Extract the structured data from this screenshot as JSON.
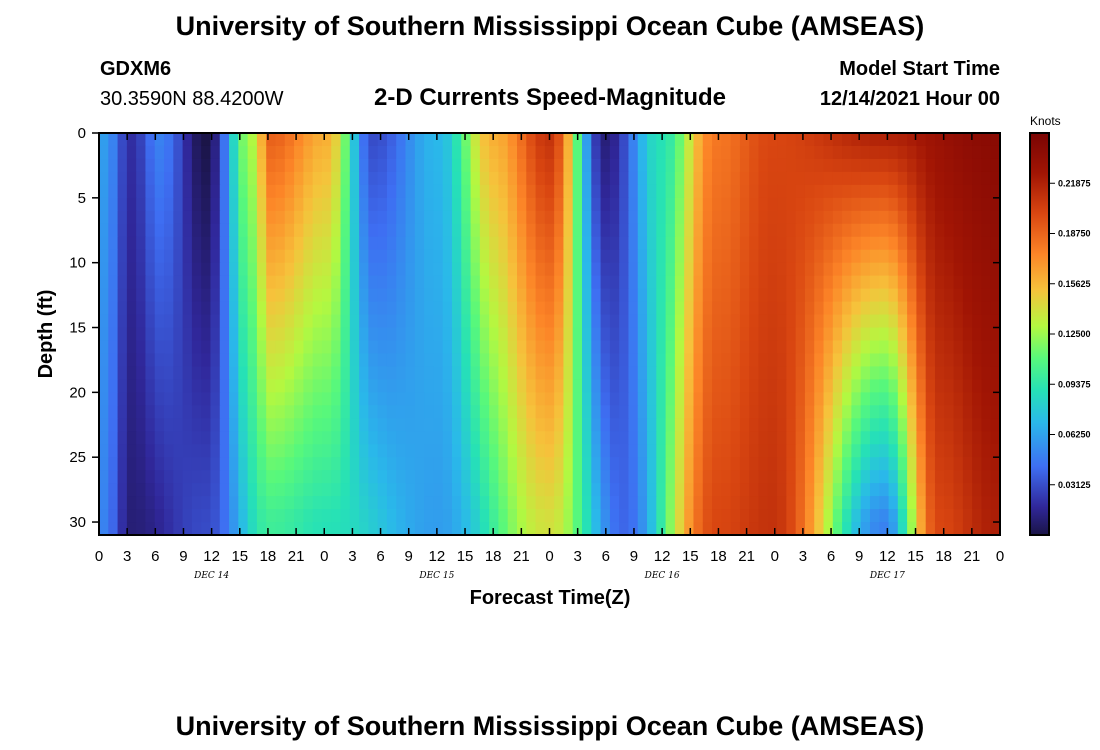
{
  "header": {
    "title": "University of Southern Mississippi Ocean Cube (AMSEAS)",
    "station_id": "GDXM6",
    "station_coords": "30.3590N  88.4200W",
    "chart_title": "2-D Currents Speed-Magnitude",
    "model_start_label": "Model Start Time",
    "model_start_value": "12/14/2021 Hour 00"
  },
  "footer": {
    "title": "University of Southern Mississippi Ocean Cube (AMSEAS)"
  },
  "colors": {
    "background": "#ffffff",
    "text": "#000000",
    "palette": [
      "#1a1446",
      "#30279a",
      "#3e6ef2",
      "#2ab8ea",
      "#26e1b6",
      "#58f87b",
      "#b4f840",
      "#f6c23b",
      "#fc8427",
      "#d94611",
      "#a11504",
      "#7a0403"
    ]
  },
  "chart_data": {
    "type": "heatmap",
    "title": "2-D Currents Speed-Magnitude",
    "xlabel": "Forecast Time(Z)",
    "ylabel": "Depth (ft)",
    "x_tick_labels": [
      "0",
      "3",
      "6",
      "9",
      "12",
      "15",
      "18",
      "21",
      "0",
      "3",
      "6",
      "9",
      "12",
      "15",
      "18",
      "21",
      "0",
      "3",
      "6",
      "9",
      "12",
      "15",
      "18",
      "21",
      "0",
      "3",
      "6",
      "9",
      "12",
      "15",
      "18",
      "21",
      "0"
    ],
    "x_range_hours": [
      0,
      96
    ],
    "day_labels": [
      {
        "label": "DEC 14",
        "hour": 12
      },
      {
        "label": "DEC 15",
        "hour": 36
      },
      {
        "label": "DEC 16",
        "hour": 60
      },
      {
        "label": "DEC 17",
        "hour": 84
      }
    ],
    "y_ticks": [
      0,
      5,
      10,
      15,
      20,
      25,
      30
    ],
    "y_range_ft": [
      0,
      31
    ],
    "y_inverted": true,
    "colorbar": {
      "unit": "Knots",
      "tick_labels": [
        "0.21875",
        "0.18750",
        "0.15625",
        "0.12500",
        "0.09375",
        "0.06250",
        "0.03125"
      ],
      "tick_values": [
        0.21875,
        0.1875,
        0.15625,
        0.125,
        0.09375,
        0.0625,
        0.03125
      ],
      "range": [
        0.0,
        0.25
      ]
    },
    "surface_profile_knots_approx": [
      {
        "hour": 0,
        "value": 0.06
      },
      {
        "hour": 3,
        "value": 0.02
      },
      {
        "hour": 6,
        "value": 0.05
      },
      {
        "hour": 11,
        "value": 0.0
      },
      {
        "hour": 16,
        "value": 0.13
      },
      {
        "hour": 18,
        "value": 0.19
      },
      {
        "hour": 24,
        "value": 0.16
      },
      {
        "hour": 29,
        "value": 0.03
      },
      {
        "hour": 36,
        "value": 0.07
      },
      {
        "hour": 42,
        "value": 0.16
      },
      {
        "hour": 48,
        "value": 0.21
      },
      {
        "hour": 54,
        "value": 0.01
      },
      {
        "hour": 60,
        "value": 0.09
      },
      {
        "hour": 66,
        "value": 0.18
      },
      {
        "hour": 72,
        "value": 0.2
      },
      {
        "hour": 84,
        "value": 0.22
      },
      {
        "hour": 96,
        "value": 0.24
      }
    ],
    "depth_30ft_profile_knots_approx": [
      {
        "hour": 0,
        "value": 0.05
      },
      {
        "hour": 3,
        "value": 0.01
      },
      {
        "hour": 11,
        "value": 0.03
      },
      {
        "hour": 18,
        "value": 0.1
      },
      {
        "hour": 24,
        "value": 0.09
      },
      {
        "hour": 36,
        "value": 0.06
      },
      {
        "hour": 48,
        "value": 0.14
      },
      {
        "hour": 56,
        "value": 0.04
      },
      {
        "hour": 66,
        "value": 0.2
      },
      {
        "hour": 72,
        "value": 0.21
      },
      {
        "hour": 84,
        "value": 0.05
      },
      {
        "hour": 90,
        "value": 0.2
      },
      {
        "hour": 96,
        "value": 0.22
      }
    ]
  }
}
